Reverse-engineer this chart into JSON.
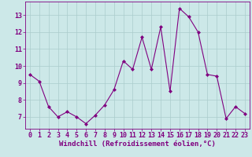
{
  "x": [
    0,
    1,
    2,
    3,
    4,
    5,
    6,
    7,
    8,
    9,
    10,
    11,
    12,
    13,
    14,
    15,
    16,
    17,
    18,
    19,
    20,
    21,
    22,
    23
  ],
  "y": [
    9.5,
    9.1,
    7.6,
    7.0,
    7.3,
    7.0,
    6.6,
    7.1,
    7.7,
    8.6,
    10.3,
    9.8,
    11.7,
    9.8,
    12.3,
    8.5,
    13.4,
    12.9,
    12.0,
    9.5,
    9.4,
    6.9,
    7.6,
    7.2
  ],
  "line_color": "#800080",
  "marker": "D",
  "marker_size": 2,
  "bg_color": "#cce8e8",
  "grid_color": "#aacccc",
  "xlabel": "Windchill (Refroidissement éolien,°C)",
  "xlabel_fontsize": 6.5,
  "tick_fontsize": 6,
  "ylim": [
    6.3,
    13.8
  ],
  "yticks": [
    7,
    8,
    9,
    10,
    11,
    12,
    13
  ],
  "xticks": [
    0,
    1,
    2,
    3,
    4,
    5,
    6,
    7,
    8,
    9,
    10,
    11,
    12,
    13,
    14,
    15,
    16,
    17,
    18,
    19,
    20,
    21,
    22,
    23
  ]
}
